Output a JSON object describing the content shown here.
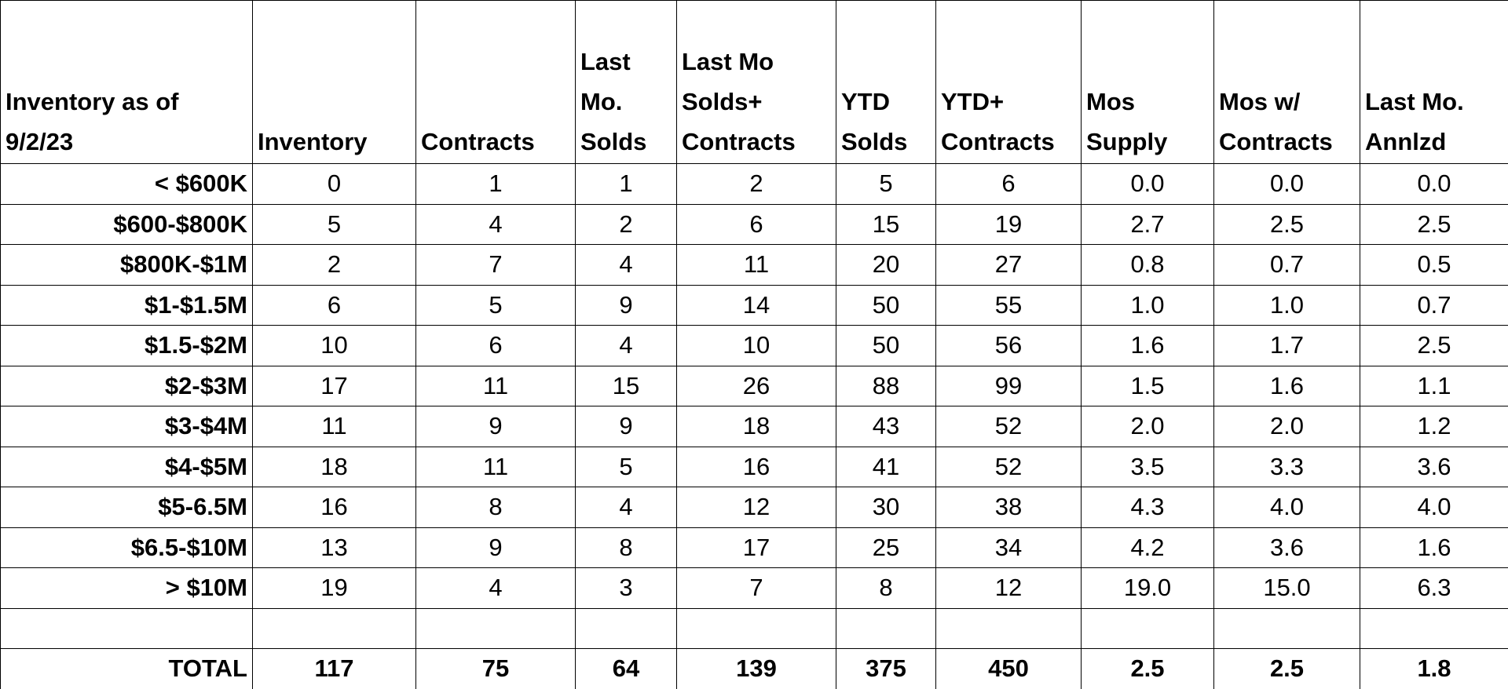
{
  "table": {
    "header": [
      "Inventory as of 9/2/23",
      "Inventory",
      "Contracts",
      "Last Mo. Solds",
      "Last Mo Solds+ Contracts",
      "YTD Solds",
      "YTD+ Contracts",
      "Mos Supply",
      "Mos w/ Contracts",
      "Last Mo. Annlzd"
    ],
    "rows": [
      [
        "< $600K",
        "0",
        "1",
        "1",
        "2",
        "5",
        "6",
        "0.0",
        "0.0",
        "0.0"
      ],
      [
        "$600-$800K",
        "5",
        "4",
        "2",
        "6",
        "15",
        "19",
        "2.7",
        "2.5",
        "2.5"
      ],
      [
        "$800K-$1M",
        "2",
        "7",
        "4",
        "11",
        "20",
        "27",
        "0.8",
        "0.7",
        "0.5"
      ],
      [
        "$1-$1.5M",
        "6",
        "5",
        "9",
        "14",
        "50",
        "55",
        "1.0",
        "1.0",
        "0.7"
      ],
      [
        "$1.5-$2M",
        "10",
        "6",
        "4",
        "10",
        "50",
        "56",
        "1.6",
        "1.7",
        "2.5"
      ],
      [
        "$2-$3M",
        "17",
        "11",
        "15",
        "26",
        "88",
        "99",
        "1.5",
        "1.6",
        "1.1"
      ],
      [
        "$3-$4M",
        "11",
        "9",
        "9",
        "18",
        "43",
        "52",
        "2.0",
        "2.0",
        "1.2"
      ],
      [
        "$4-$5M",
        "18",
        "11",
        "5",
        "16",
        "41",
        "52",
        "3.5",
        "3.3",
        "3.6"
      ],
      [
        "$5-6.5M",
        "16",
        "8",
        "4",
        "12",
        "30",
        "38",
        "4.3",
        "4.0",
        "4.0"
      ],
      [
        "$6.5-$10M",
        "13",
        "9",
        "8",
        "17",
        "25",
        "34",
        "4.2",
        "3.6",
        "1.6"
      ],
      [
        "> $10M",
        "19",
        "4",
        "3",
        "7",
        "8",
        "12",
        "19.0",
        "15.0",
        "6.3"
      ]
    ],
    "total": [
      "TOTAL",
      "117",
      "75",
      "64",
      "139",
      "375",
      "450",
      "2.5",
      "2.5",
      "1.8"
    ]
  }
}
